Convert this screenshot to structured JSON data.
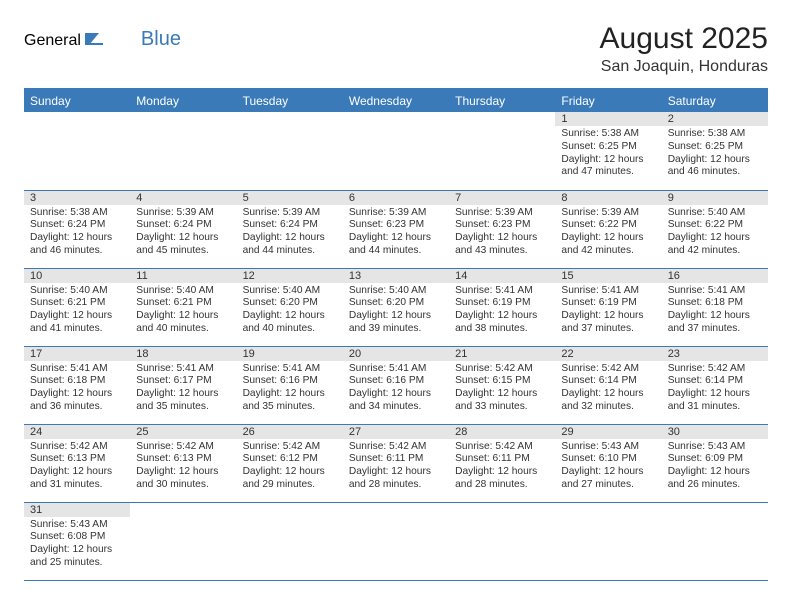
{
  "brand": {
    "text_general": "General",
    "text_blue": "Blue",
    "flag_color": "#3a7ab8"
  },
  "header": {
    "month_title": "August 2025",
    "location": "San Joaquin, Honduras"
  },
  "colors": {
    "header_bg": "#3a7ab8",
    "header_text": "#ffffff",
    "daynum_bg": "#e5e5e5",
    "row_border": "#3a7ab8",
    "text": "#333333",
    "page_bg": "#ffffff"
  },
  "typography": {
    "title_fontsize": 30,
    "location_fontsize": 16,
    "weekday_fontsize": 12,
    "daynum_fontsize": 11,
    "cell_fontsize": 10.2,
    "logo_fontsize": 20
  },
  "days_of_week": [
    "Sunday",
    "Monday",
    "Tuesday",
    "Wednesday",
    "Thursday",
    "Friday",
    "Saturday"
  ],
  "weeks": [
    [
      null,
      null,
      null,
      null,
      null,
      {
        "n": "1",
        "sunrise": "5:38 AM",
        "sunset": "6:25 PM",
        "daylight": "12 hours and 47 minutes."
      },
      {
        "n": "2",
        "sunrise": "5:38 AM",
        "sunset": "6:25 PM",
        "daylight": "12 hours and 46 minutes."
      }
    ],
    [
      {
        "n": "3",
        "sunrise": "5:38 AM",
        "sunset": "6:24 PM",
        "daylight": "12 hours and 46 minutes."
      },
      {
        "n": "4",
        "sunrise": "5:39 AM",
        "sunset": "6:24 PM",
        "daylight": "12 hours and 45 minutes."
      },
      {
        "n": "5",
        "sunrise": "5:39 AM",
        "sunset": "6:24 PM",
        "daylight": "12 hours and 44 minutes."
      },
      {
        "n": "6",
        "sunrise": "5:39 AM",
        "sunset": "6:23 PM",
        "daylight": "12 hours and 44 minutes."
      },
      {
        "n": "7",
        "sunrise": "5:39 AM",
        "sunset": "6:23 PM",
        "daylight": "12 hours and 43 minutes."
      },
      {
        "n": "8",
        "sunrise": "5:39 AM",
        "sunset": "6:22 PM",
        "daylight": "12 hours and 42 minutes."
      },
      {
        "n": "9",
        "sunrise": "5:40 AM",
        "sunset": "6:22 PM",
        "daylight": "12 hours and 42 minutes."
      }
    ],
    [
      {
        "n": "10",
        "sunrise": "5:40 AM",
        "sunset": "6:21 PM",
        "daylight": "12 hours and 41 minutes."
      },
      {
        "n": "11",
        "sunrise": "5:40 AM",
        "sunset": "6:21 PM",
        "daylight": "12 hours and 40 minutes."
      },
      {
        "n": "12",
        "sunrise": "5:40 AM",
        "sunset": "6:20 PM",
        "daylight": "12 hours and 40 minutes."
      },
      {
        "n": "13",
        "sunrise": "5:40 AM",
        "sunset": "6:20 PM",
        "daylight": "12 hours and 39 minutes."
      },
      {
        "n": "14",
        "sunrise": "5:41 AM",
        "sunset": "6:19 PM",
        "daylight": "12 hours and 38 minutes."
      },
      {
        "n": "15",
        "sunrise": "5:41 AM",
        "sunset": "6:19 PM",
        "daylight": "12 hours and 37 minutes."
      },
      {
        "n": "16",
        "sunrise": "5:41 AM",
        "sunset": "6:18 PM",
        "daylight": "12 hours and 37 minutes."
      }
    ],
    [
      {
        "n": "17",
        "sunrise": "5:41 AM",
        "sunset": "6:18 PM",
        "daylight": "12 hours and 36 minutes."
      },
      {
        "n": "18",
        "sunrise": "5:41 AM",
        "sunset": "6:17 PM",
        "daylight": "12 hours and 35 minutes."
      },
      {
        "n": "19",
        "sunrise": "5:41 AM",
        "sunset": "6:16 PM",
        "daylight": "12 hours and 35 minutes."
      },
      {
        "n": "20",
        "sunrise": "5:41 AM",
        "sunset": "6:16 PM",
        "daylight": "12 hours and 34 minutes."
      },
      {
        "n": "21",
        "sunrise": "5:42 AM",
        "sunset": "6:15 PM",
        "daylight": "12 hours and 33 minutes."
      },
      {
        "n": "22",
        "sunrise": "5:42 AM",
        "sunset": "6:14 PM",
        "daylight": "12 hours and 32 minutes."
      },
      {
        "n": "23",
        "sunrise": "5:42 AM",
        "sunset": "6:14 PM",
        "daylight": "12 hours and 31 minutes."
      }
    ],
    [
      {
        "n": "24",
        "sunrise": "5:42 AM",
        "sunset": "6:13 PM",
        "daylight": "12 hours and 31 minutes."
      },
      {
        "n": "25",
        "sunrise": "5:42 AM",
        "sunset": "6:13 PM",
        "daylight": "12 hours and 30 minutes."
      },
      {
        "n": "26",
        "sunrise": "5:42 AM",
        "sunset": "6:12 PM",
        "daylight": "12 hours and 29 minutes."
      },
      {
        "n": "27",
        "sunrise": "5:42 AM",
        "sunset": "6:11 PM",
        "daylight": "12 hours and 28 minutes."
      },
      {
        "n": "28",
        "sunrise": "5:42 AM",
        "sunset": "6:11 PM",
        "daylight": "12 hours and 28 minutes."
      },
      {
        "n": "29",
        "sunrise": "5:43 AM",
        "sunset": "6:10 PM",
        "daylight": "12 hours and 27 minutes."
      },
      {
        "n": "30",
        "sunrise": "5:43 AM",
        "sunset": "6:09 PM",
        "daylight": "12 hours and 26 minutes."
      }
    ],
    [
      {
        "n": "31",
        "sunrise": "5:43 AM",
        "sunset": "6:08 PM",
        "daylight": "12 hours and 25 minutes."
      },
      null,
      null,
      null,
      null,
      null,
      null
    ]
  ],
  "labels": {
    "sunrise_prefix": "Sunrise: ",
    "sunset_prefix": "Sunset: ",
    "daylight_prefix": "Daylight: "
  }
}
